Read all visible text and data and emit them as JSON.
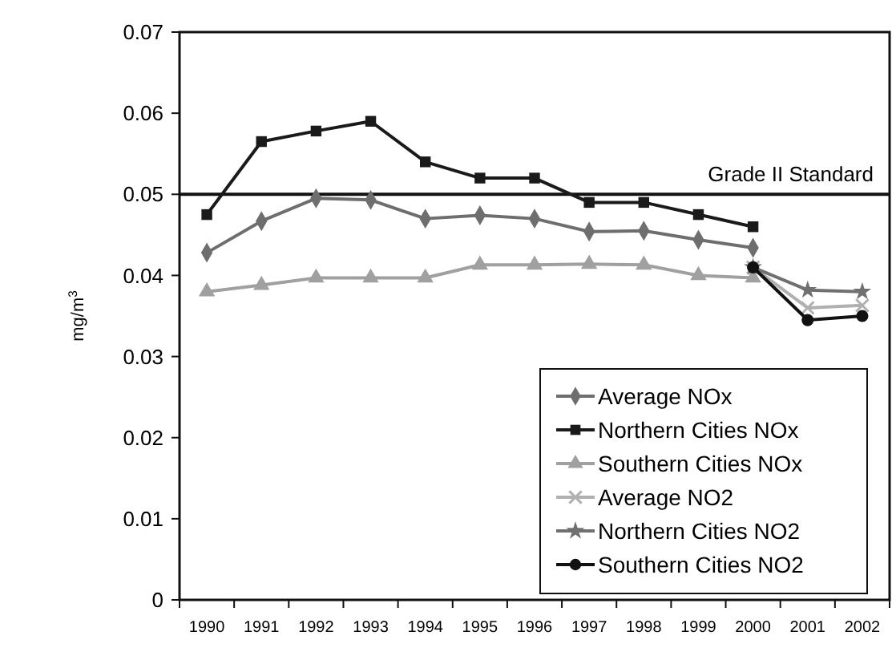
{
  "chart_data": {
    "type": "line",
    "ylabel": "mg/m$^{3}$",
    "categories": [
      "1990",
      "1991",
      "1992",
      "1993",
      "1994",
      "1995",
      "1996",
      "1997",
      "1998",
      "1999",
      "2000",
      "2001",
      "2002"
    ],
    "ylim": [
      0,
      0.07
    ],
    "yticks": [
      {
        "value": 0,
        "label": "0"
      },
      {
        "value": 0.01,
        "label": "0.01"
      },
      {
        "value": 0.02,
        "label": "0.02"
      },
      {
        "value": 0.03,
        "label": "0.03"
      },
      {
        "value": 0.04,
        "label": "0.04"
      },
      {
        "value": 0.05,
        "label": "0.05"
      },
      {
        "value": 0.06,
        "label": "0.06"
      },
      {
        "value": 0.07,
        "label": "0.07"
      }
    ],
    "grid": false,
    "legend": "bottom right",
    "line_style": "solid",
    "ref_lines": [
      {
        "axis": "y",
        "value": 0.05,
        "label": "Grade II Standard",
        "color": "#111111"
      }
    ],
    "series": [
      {
        "name": "Average NOx",
        "color": "#6e6e6e",
        "marker": "diamond",
        "values": [
          0.0428,
          0.0467,
          0.0495,
          0.0493,
          0.047,
          0.0474,
          0.047,
          0.0454,
          0.0455,
          0.0444,
          0.0434,
          null,
          null
        ]
      },
      {
        "name": "Northern Cities NOx",
        "color": "#1a1a1a",
        "marker": "square",
        "values": [
          0.0475,
          0.0565,
          0.0578,
          0.059,
          0.054,
          0.052,
          0.052,
          0.049,
          0.049,
          0.0475,
          0.046,
          null,
          null
        ]
      },
      {
        "name": "Southern Cities NOx",
        "color": "#a0a0a0",
        "marker": "triangle",
        "values": [
          0.038,
          0.0388,
          0.0397,
          0.0397,
          0.0397,
          0.0413,
          0.0413,
          0.0414,
          0.0413,
          0.04,
          0.0397,
          null,
          null
        ]
      },
      {
        "name": "Average NO2",
        "color": "#b0b0b0",
        "marker": "cross",
        "values": [
          null,
          null,
          null,
          null,
          null,
          null,
          null,
          null,
          null,
          null,
          0.041,
          0.036,
          0.0363
        ]
      },
      {
        "name": "Northern Cities NO2",
        "color": "#707070",
        "marker": "star",
        "values": [
          null,
          null,
          null,
          null,
          null,
          null,
          null,
          null,
          null,
          null,
          0.041,
          0.0382,
          0.038
        ]
      },
      {
        "name": "Southern Cities NO2",
        "color": "#111111",
        "marker": "circle",
        "values": [
          null,
          null,
          null,
          null,
          null,
          null,
          null,
          null,
          null,
          null,
          0.041,
          0.0345,
          0.035
        ]
      }
    ]
  }
}
